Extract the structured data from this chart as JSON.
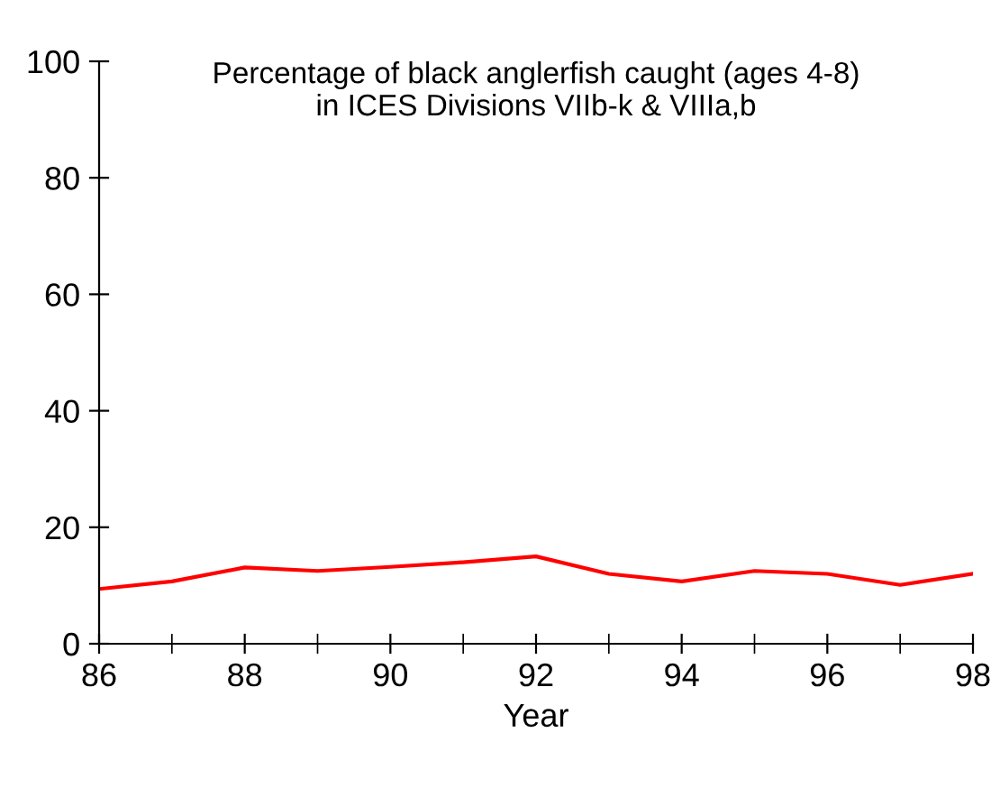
{
  "chart_data": {
    "type": "line",
    "title": "Percentage of black anglerfish caught (ages 4-8)\nin ICES Divisions VIIb-k & VIIIa,b",
    "xlabel": "Year",
    "x": [
      86,
      87,
      88,
      89,
      90,
      91,
      92,
      93,
      94,
      95,
      96,
      97,
      98
    ],
    "series": [
      {
        "color": "#ff0000",
        "values": [
          9.4,
          10.7,
          13.1,
          12.5,
          13.2,
          14.0,
          15.0,
          12.0,
          10.7,
          12.5,
          12.0,
          10.1,
          12.0
        ]
      }
    ],
    "xlim": [
      86,
      98
    ],
    "xticks": [
      86,
      88,
      90,
      92,
      94,
      96,
      98
    ],
    "ylim": [
      0,
      100
    ],
    "yticks": [
      0,
      20,
      40,
      60,
      80,
      100
    ],
    "grid": false,
    "marker": "none",
    "line_style": "solid"
  }
}
